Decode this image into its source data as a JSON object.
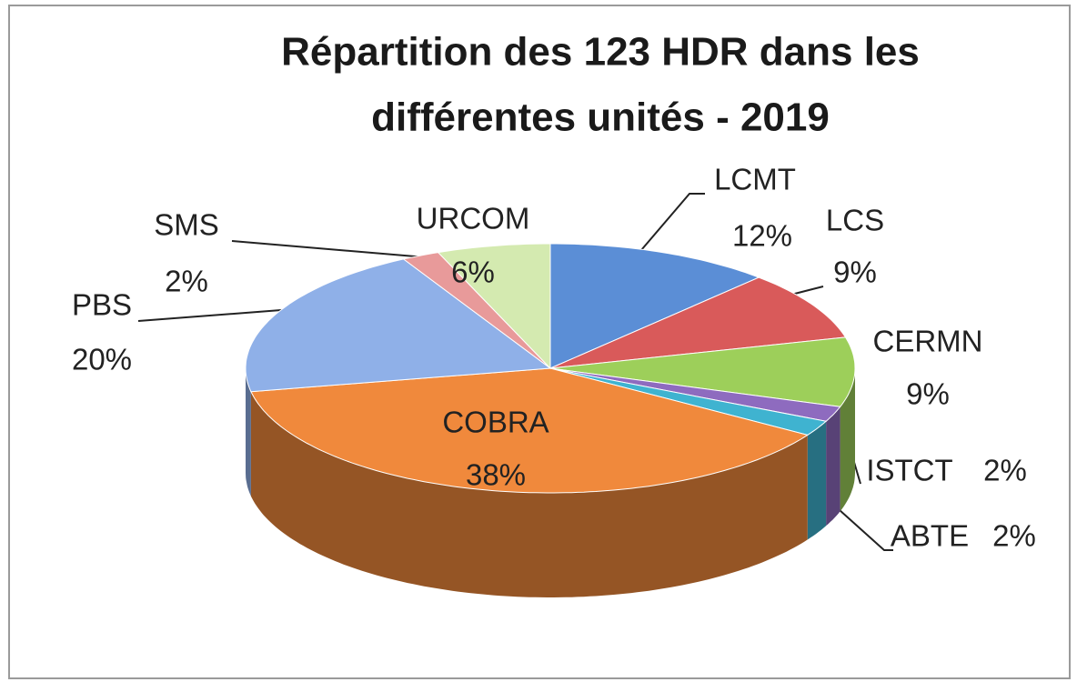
{
  "chart_data": {
    "type": "pie3d",
    "title": [
      "Répartition des 123 HDR dans les",
      "différentes unités - 2019"
    ],
    "categories": [
      "LCMT",
      "LCS",
      "CERMN",
      "ISTCT",
      "ABTE",
      "COBRA",
      "PBS",
      "SMS",
      "URCOM"
    ],
    "values": [
      12,
      9,
      9,
      2,
      2,
      38,
      20,
      2,
      6
    ],
    "value_labels": [
      "12%",
      "9%",
      "9%",
      "2%",
      "2%",
      "38%",
      "20%",
      "2%",
      "6%"
    ],
    "colors": [
      "#5b8ed6",
      "#d95a5a",
      "#9dcf5a",
      "#8e6bbf",
      "#3fb3d0",
      "#f0893c",
      "#8fb0e8",
      "#e89a9a",
      "#d4eab0"
    ]
  }
}
